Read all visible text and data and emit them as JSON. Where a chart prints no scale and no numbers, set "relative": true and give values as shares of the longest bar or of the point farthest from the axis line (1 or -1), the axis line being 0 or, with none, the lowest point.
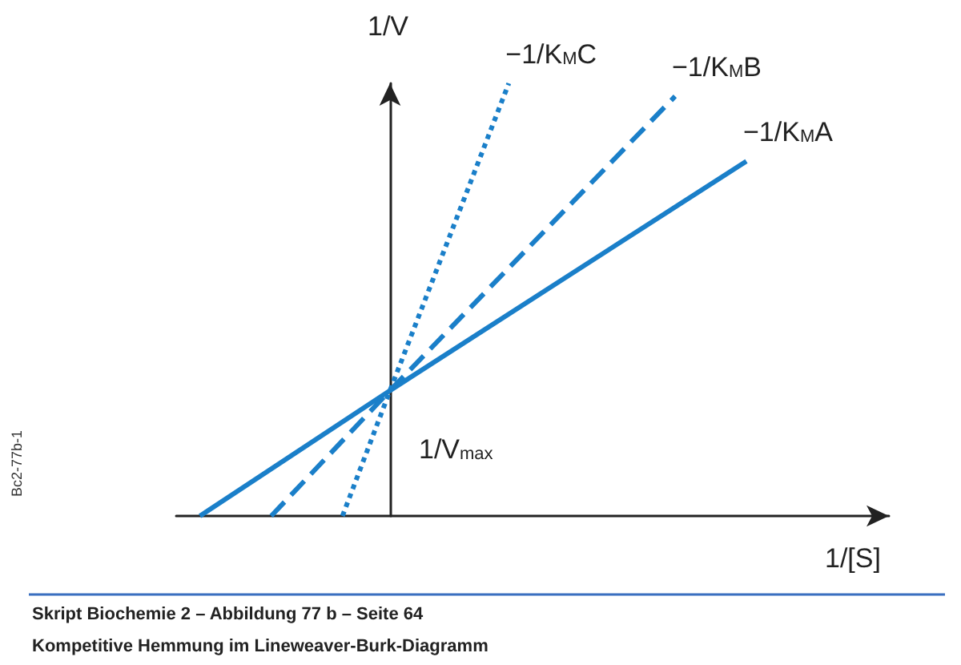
{
  "chart_data": {
    "type": "line",
    "title": "Kompetitive Hemmung im Lineweaver-Burk-Diagramm",
    "subtitle": "Skript Biochemie 2 – Abbildung 77 b – Seite 64",
    "xlabel": "1/[S]",
    "ylabel": "1/V",
    "relative": true,
    "tick_labels": false,
    "grid": false,
    "legend": false,
    "marker": "none",
    "categories": [
      null,
      null,
      null,
      null,
      null,
      null,
      null,
      null,
      null,
      null,
      null,
      null,
      null,
      null,
      null,
      null,
      null,
      null,
      null,
      null,
      null,
      null,
      null,
      null,
      null,
      null,
      null,
      null,
      null,
      null,
      null
    ],
    "annotations": [
      "1/V$_{max}$",
      "Bc2-77b-1"
    ],
    "series": [
      {
        "name": "−1/K$_{M}$A",
        "color": "#1a7fc9",
        "line_style": "solid",
        "values": [
          null,
          0,
          null,
          null,
          null,
          null,
          null,
          null,
          null,
          0.29,
          null,
          null,
          null,
          null,
          null,
          null,
          null,
          null,
          null,
          null,
          null,
          null,
          null,
          null,
          0.82,
          null,
          null,
          null,
          null,
          null,
          null
        ]
      },
      {
        "name": "−1/K$_{M}$B",
        "color": "#1a7fc9",
        "line_style": "dashed",
        "values": [
          null,
          null,
          null,
          null,
          0,
          null,
          null,
          null,
          null,
          0.29,
          null,
          null,
          null,
          null,
          null,
          null,
          null,
          null,
          null,
          null,
          null,
          0.97,
          null,
          null,
          null,
          null,
          null,
          null,
          null,
          null,
          null
        ]
      },
      {
        "name": "−1/K$_{M}$C",
        "color": "#1a7fc9",
        "line_style": "dotted",
        "values": [
          null,
          null,
          null,
          null,
          null,
          null,
          null,
          0,
          null,
          0.29,
          null,
          null,
          null,
          null,
          1,
          null,
          null,
          null,
          null,
          null,
          null,
          null,
          null,
          null,
          null,
          null,
          null,
          null,
          null,
          null,
          null
        ]
      }
    ]
  }
}
